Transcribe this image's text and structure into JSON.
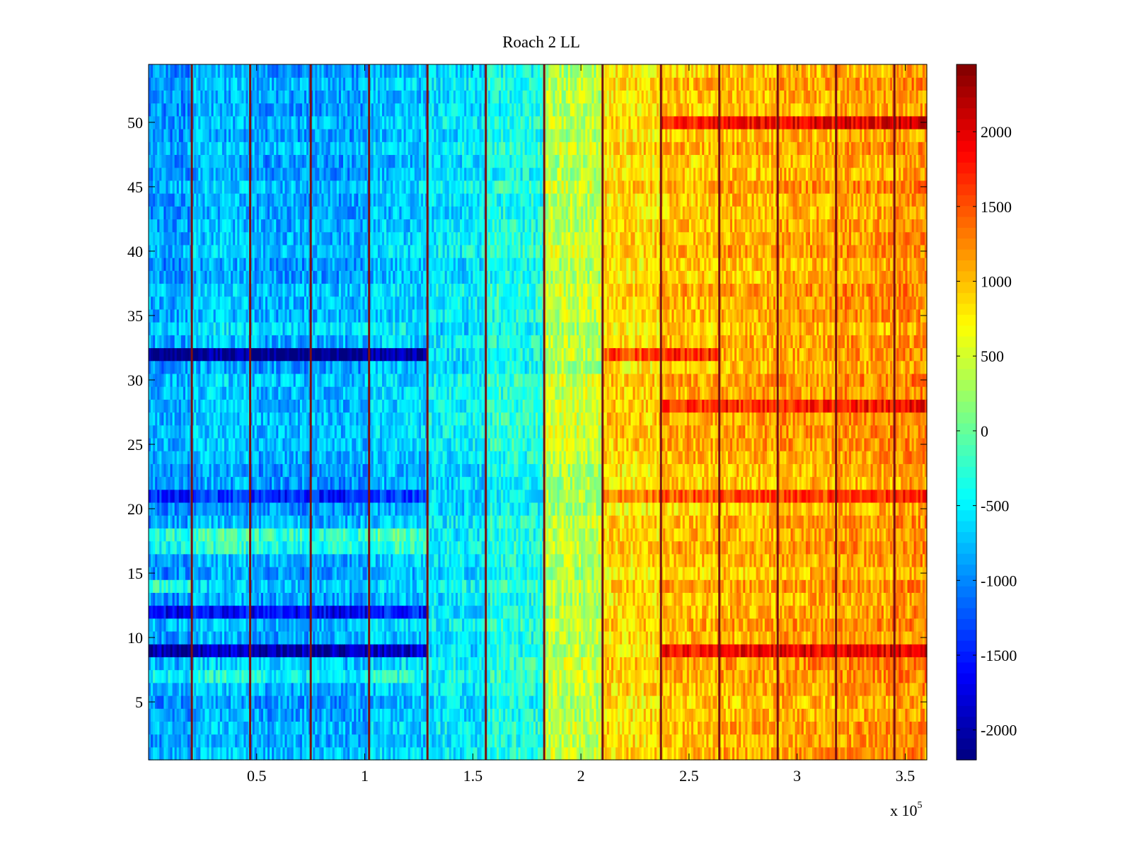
{
  "chart_data": {
    "type": "heatmap",
    "title": "Roach 2 LL",
    "xlabel": "",
    "ylabel": "",
    "x_range": [
      0,
      360000
    ],
    "y_range": [
      0.5,
      54.5
    ],
    "x_ticks": [
      50000,
      100000,
      150000,
      200000,
      250000,
      300000,
      350000
    ],
    "x_tick_labels": [
      "0.5",
      "1",
      "1.5",
      "2",
      "2.5",
      "3",
      "3.5"
    ],
    "x_multiplier_label": "x 10",
    "x_multiplier_exponent": "5",
    "y_ticks": [
      5,
      10,
      15,
      20,
      25,
      30,
      35,
      40,
      45,
      50
    ],
    "y_tick_labels": [
      "5",
      "10",
      "15",
      "20",
      "25",
      "30",
      "35",
      "40",
      "45",
      "50"
    ],
    "rows": 54,
    "colorbar": {
      "colormap": "jet",
      "range": [
        -2200,
        2450
      ],
      "ticks": [
        -2000,
        -1500,
        -1000,
        -500,
        0,
        500,
        1000,
        1500,
        2000
      ],
      "tick_labels": [
        "-2000",
        "-1500",
        "-1000",
        "-500",
        "0",
        "500",
        "1000",
        "1500",
        "2000"
      ]
    },
    "column_block_means": [
      {
        "x_range": [
          0,
          20000
        ],
        "value": -900
      },
      {
        "x_range": [
          20000,
          47000
        ],
        "value": -750
      },
      {
        "x_range": [
          47000,
          75000
        ],
        "value": -850
      },
      {
        "x_range": [
          75000,
          102000
        ],
        "value": -850
      },
      {
        "x_range": [
          102000,
          129000
        ],
        "value": -700
      },
      {
        "x_range": [
          129000,
          156000
        ],
        "value": -550
      },
      {
        "x_range": [
          156000,
          183000
        ],
        "value": -350
      },
      {
        "x_range": [
          183000,
          210000
        ],
        "value": 400
      },
      {
        "x_range": [
          210000,
          237000
        ],
        "value": 850
      },
      {
        "x_range": [
          237000,
          264000
        ],
        "value": 1000
      },
      {
        "x_range": [
          264000,
          291000
        ],
        "value": 1050
      },
      {
        "x_range": [
          291000,
          318000
        ],
        "value": 1100
      },
      {
        "x_range": [
          318000,
          345000
        ],
        "value": 1150
      },
      {
        "x_range": [
          345000,
          360000
        ],
        "value": 1200
      }
    ],
    "block_boundaries": [
      20000,
      47000,
      75000,
      102000,
      129000,
      156000,
      183000,
      210000,
      237000,
      264000,
      291000,
      318000,
      345000
    ],
    "row_offsets": [
      {
        "row": 9,
        "offset": -1100,
        "x_range": [
          0,
          129000
        ]
      },
      {
        "row": 9,
        "offset": 900,
        "x_range": [
          237000,
          360000
        ]
      },
      {
        "row": 12,
        "offset": -800,
        "x_range": [
          0,
          129000
        ]
      },
      {
        "row": 32,
        "offset": -1400,
        "x_range": [
          0,
          129000
        ]
      },
      {
        "row": 32,
        "offset": 700,
        "x_range": [
          210000,
          264000
        ]
      },
      {
        "row": 21,
        "offset": -500,
        "x_range": [
          0,
          129000
        ]
      },
      {
        "row": 21,
        "offset": 600,
        "x_range": [
          210000,
          360000
        ]
      },
      {
        "row": 50,
        "offset": 800,
        "x_range": [
          237000,
          360000
        ]
      },
      {
        "row": 28,
        "offset": 600,
        "x_range": [
          237000,
          360000
        ]
      },
      {
        "row": 14,
        "offset": 500,
        "x_range": [
          0,
          20000
        ]
      },
      {
        "row": 18,
        "offset": 600,
        "x_range": [
          0,
          129000
        ]
      },
      {
        "row": 17,
        "offset": 400,
        "x_range": [
          0,
          129000
        ]
      },
      {
        "row": 7,
        "offset": 300,
        "x_range": [
          0,
          129000
        ]
      },
      {
        "row": 34,
        "offset": 300,
        "x_range": [
          0,
          129000
        ]
      }
    ]
  }
}
